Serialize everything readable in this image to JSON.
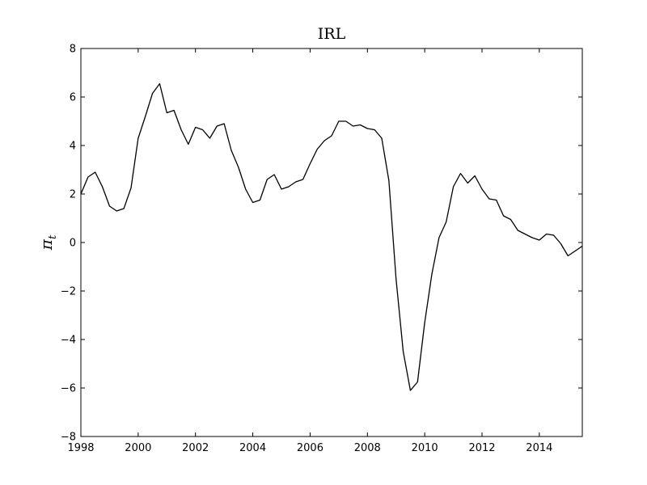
{
  "chart_data": {
    "type": "line",
    "title": "IRL",
    "xlabel": "",
    "ylabel": "π_t",
    "ylabel_main": "π",
    "ylabel_sub": "t",
    "xlim": [
      1998,
      2015.5
    ],
    "ylim": [
      -8,
      8
    ],
    "grid": false,
    "xticks": [
      1998,
      2000,
      2002,
      2004,
      2006,
      2008,
      2010,
      2012,
      2014
    ],
    "xtick_labels": [
      "1998",
      "2000",
      "2002",
      "2004",
      "2006",
      "2008",
      "2010",
      "2012",
      "2014"
    ],
    "yticks": [
      -8,
      -6,
      -4,
      -2,
      0,
      2,
      4,
      6,
      8
    ],
    "ytick_labels": [
      "−8",
      "−6",
      "−4",
      "−2",
      "0",
      "2",
      "4",
      "6",
      "8"
    ],
    "line_color": "#000000",
    "series": [
      {
        "x": [
          1998.0,
          1998.25,
          1998.5,
          1998.75,
          1999.0,
          1999.25,
          1999.5,
          1999.75,
          2000.0,
          2000.25,
          2000.5,
          2000.75,
          2001.0,
          2001.25,
          2001.5,
          2001.75,
          2002.0,
          2002.25,
          2002.5,
          2002.75,
          2003.0,
          2003.25,
          2003.5,
          2003.75,
          2004.0,
          2004.25,
          2004.5,
          2004.75,
          2005.0,
          2005.25,
          2005.5,
          2005.75,
          2006.0,
          2006.25,
          2006.5,
          2006.75,
          2007.0,
          2007.25,
          2007.5,
          2007.75,
          2008.0,
          2008.25,
          2008.5,
          2008.75,
          2009.0,
          2009.25,
          2009.5,
          2009.75,
          2010.0,
          2010.25,
          2010.5,
          2010.75,
          2011.0,
          2011.25,
          2011.5,
          2011.75,
          2012.0,
          2012.25,
          2012.5,
          2012.75,
          2013.0,
          2013.25,
          2013.5,
          2013.75,
          2014.0,
          2014.25,
          2014.5,
          2014.75,
          2015.0,
          2015.25,
          2015.5
        ],
        "y": [
          2.0,
          2.7,
          2.9,
          2.3,
          1.5,
          1.3,
          1.4,
          2.25,
          4.3,
          5.2,
          6.15,
          6.55,
          5.35,
          5.45,
          4.65,
          4.05,
          4.75,
          4.65,
          4.3,
          4.8,
          4.9,
          3.8,
          3.1,
          2.2,
          1.65,
          1.75,
          2.6,
          2.8,
          2.2,
          2.3,
          2.5,
          2.6,
          3.25,
          3.85,
          4.2,
          4.4,
          5.0,
          5.0,
          4.8,
          4.85,
          4.7,
          4.65,
          4.3,
          2.55,
          -1.5,
          -4.5,
          -6.1,
          -5.75,
          -3.3,
          -1.3,
          0.2,
          0.85,
          2.3,
          2.85,
          2.45,
          2.75,
          2.2,
          1.8,
          1.75,
          1.1,
          0.95,
          0.5,
          0.35,
          0.2,
          0.1,
          0.35,
          0.3,
          -0.05,
          -0.55,
          -0.35,
          -0.15
        ]
      }
    ]
  }
}
